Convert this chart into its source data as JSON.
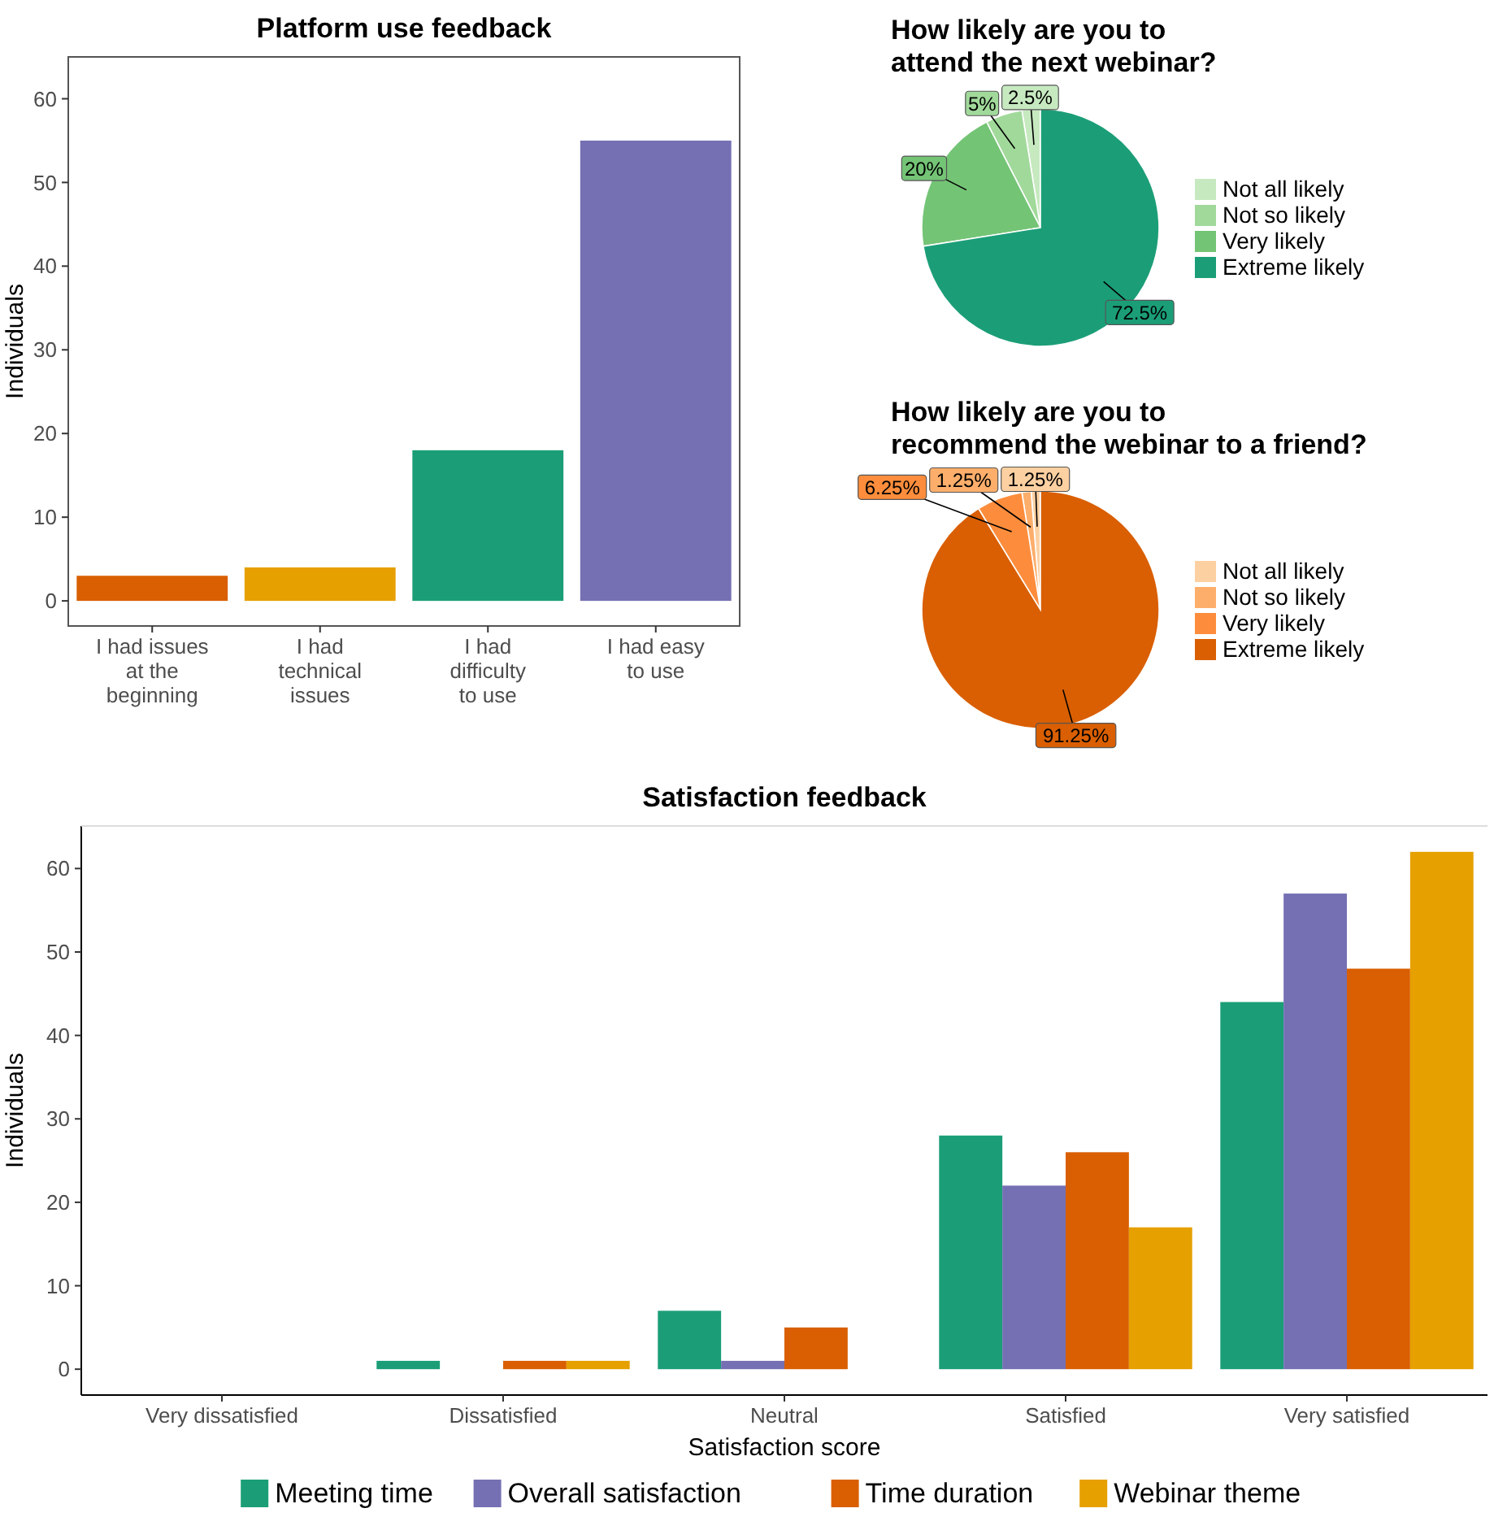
{
  "chart_data": [
    {
      "type": "bar",
      "title": "Platform use feedback",
      "ylabel": "Individuals",
      "categories": [
        "I had issues at the beginning",
        "I had technical issues",
        "I had difficulty to use",
        "I had easy to use"
      ],
      "values": [
        3,
        4,
        18,
        55
      ],
      "colors": [
        "#d95f02",
        "#e6a000",
        "#1b9e77",
        "#7570b3"
      ],
      "ylim": [
        -3,
        65
      ],
      "yticks": [
        0,
        10,
        20,
        30,
        40,
        50,
        60
      ],
      "grid": false,
      "legend": false
    },
    {
      "type": "pie",
      "title": "How likely are you to\nattend the next webinar?",
      "categories": [
        "Not all likely",
        "Not so likely",
        "Very likely",
        "Extreme likely"
      ],
      "values": [
        2.5,
        5,
        20,
        72.5
      ],
      "colors": [
        "#c7e9c0",
        "#a1d99b",
        "#74c476",
        "#1b9e77"
      ],
      "value_labels": [
        "2.5%",
        "5%",
        "20%",
        "72.5%"
      ],
      "legend": "right"
    },
    {
      "type": "pie",
      "title": "How likely are you to\nrecommend the webinar to a friend?",
      "categories": [
        "Not all likely",
        "Not so likely",
        "Very likely",
        "Extreme likely"
      ],
      "values": [
        1.25,
        1.25,
        6.25,
        91.25
      ],
      "colors": [
        "#fdd0a2",
        "#fdae6b",
        "#fd8d3c",
        "#d95f02"
      ],
      "value_labels": [
        "1.25%",
        "1.25%",
        "6.25%",
        "91.25%"
      ],
      "legend": "right"
    },
    {
      "type": "bar",
      "title": "Satisfaction feedback",
      "xlabel": "Satisfaction score",
      "ylabel": "Individuals",
      "categories": [
        "Very dissatisfied",
        "Dissatisfied",
        "Neutral",
        "Satisfied",
        "Very satisfied"
      ],
      "ylim": [
        -3.1,
        65.1
      ],
      "yticks": [
        0,
        10,
        20,
        30,
        40,
        50,
        60
      ],
      "grid": false,
      "legend": "bottom",
      "series": [
        {
          "name": "Meeting time",
          "color": "#1b9e77",
          "values": [
            0,
            1,
            7,
            28,
            44
          ]
        },
        {
          "name": "Overall satisfaction",
          "color": "#7570b3",
          "values": [
            0,
            0,
            1,
            22,
            57
          ]
        },
        {
          "name": "Time duration",
          "color": "#d95f02",
          "values": [
            0,
            1,
            5,
            26,
            48
          ]
        },
        {
          "name": "Webinar theme",
          "color": "#e6a000",
          "values": [
            0,
            1,
            0,
            17,
            62
          ]
        }
      ]
    }
  ]
}
